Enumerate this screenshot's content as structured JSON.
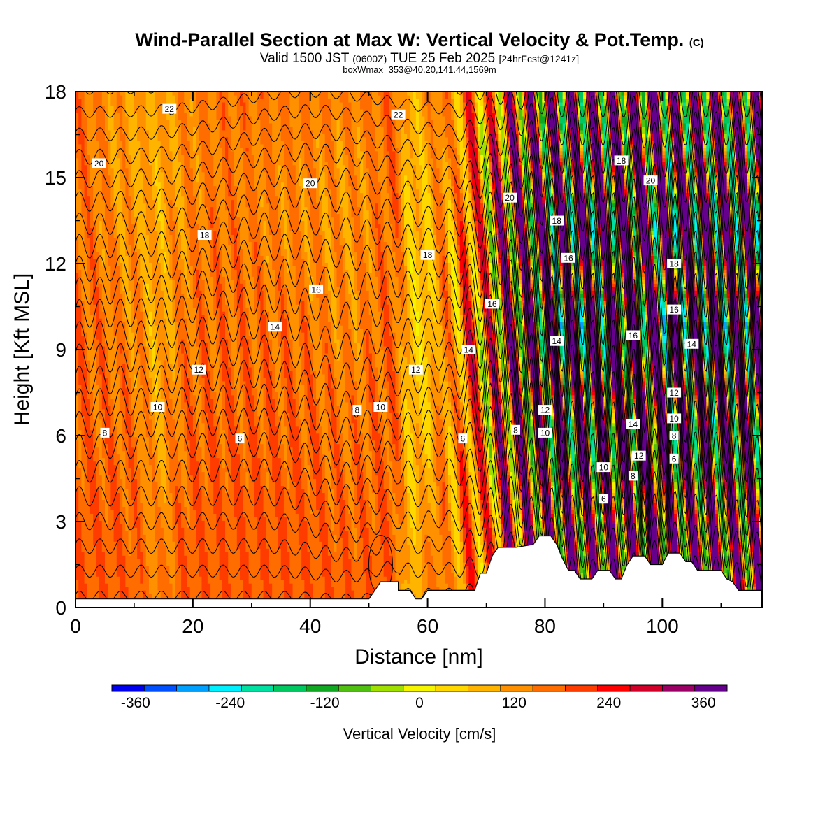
{
  "header": {
    "title": "Wind-Parallel Section at Max W: Vertical Velocity & Pot.Temp.",
    "title_mark": "(C)",
    "valid_prefix": "Valid 1500 JST",
    "valid_utc": "(0600Z)",
    "valid_date": "TUE 25 Feb 2025",
    "forecast": "[24hrFcst@1241z]",
    "boxwmax": "boxWmax=353@40.20,141.44,1569m"
  },
  "chart_data": {
    "type": "heatmap",
    "title": "Wind-Parallel Section at Max W: Vertical Velocity & Pot.Temp.",
    "xlabel": "Distance [nm]",
    "ylabel": "Height [Kft MSL]",
    "xlim": [
      0,
      117
    ],
    "ylim": [
      0,
      18
    ],
    "x_ticks": [
      0,
      20,
      40,
      60,
      80,
      100
    ],
    "y_ticks": [
      0,
      3,
      6,
      9,
      12,
      15,
      18
    ],
    "colorbar": {
      "title": "Vertical Velocity [cm/s]",
      "min": -390,
      "max": 390,
      "step": 30,
      "tick_values": [
        -360,
        -240,
        -120,
        0,
        120,
        240,
        360
      ],
      "tick_labels": [
        "-360",
        "-240",
        "-120",
        "0",
        "120",
        "240",
        "360"
      ],
      "colors": [
        "#0000f0",
        "#0050ff",
        "#00a0ff",
        "#00f0ff",
        "#00e0a0",
        "#00c860",
        "#10a820",
        "#50c010",
        "#a0e000",
        "#f5f500",
        "#ffd800",
        "#ffb400",
        "#ff9000",
        "#ff6c00",
        "#ff3c00",
        "#ff0000",
        "#d20028",
        "#9b0064",
        "#64008c"
      ]
    },
    "contour_labels": [
      "6",
      "8",
      "10",
      "12",
      "14",
      "16",
      "18",
      "20",
      "22"
    ],
    "theta_label_points": [
      {
        "x": 16,
        "y": 17.4,
        "label": "22"
      },
      {
        "x": 55,
        "y": 17.2,
        "label": "22"
      },
      {
        "x": 4,
        "y": 15.5,
        "label": "20"
      },
      {
        "x": 40,
        "y": 14.8,
        "label": "20"
      },
      {
        "x": 74,
        "y": 14.3,
        "label": "20"
      },
      {
        "x": 98,
        "y": 14.9,
        "label": "20"
      },
      {
        "x": 22,
        "y": 13.0,
        "label": "18"
      },
      {
        "x": 60,
        "y": 12.3,
        "label": "18"
      },
      {
        "x": 82,
        "y": 13.5,
        "label": "18"
      },
      {
        "x": 93,
        "y": 15.6,
        "label": "18"
      },
      {
        "x": 102,
        "y": 12.0,
        "label": "18"
      },
      {
        "x": 41,
        "y": 11.1,
        "label": "16"
      },
      {
        "x": 71,
        "y": 10.6,
        "label": "16"
      },
      {
        "x": 84,
        "y": 12.2,
        "label": "16"
      },
      {
        "x": 95,
        "y": 9.5,
        "label": "16"
      },
      {
        "x": 102,
        "y": 10.4,
        "label": "16"
      },
      {
        "x": 34,
        "y": 9.8,
        "label": "14"
      },
      {
        "x": 67,
        "y": 9.0,
        "label": "14"
      },
      {
        "x": 82,
        "y": 9.3,
        "label": "14"
      },
      {
        "x": 95,
        "y": 6.4,
        "label": "14"
      },
      {
        "x": 105,
        "y": 9.2,
        "label": "14"
      },
      {
        "x": 21,
        "y": 8.3,
        "label": "12"
      },
      {
        "x": 58,
        "y": 8.3,
        "label": "12"
      },
      {
        "x": 80,
        "y": 6.9,
        "label": "12"
      },
      {
        "x": 96,
        "y": 5.3,
        "label": "12"
      },
      {
        "x": 102,
        "y": 7.5,
        "label": "12"
      },
      {
        "x": 14,
        "y": 7.0,
        "label": "10"
      },
      {
        "x": 52,
        "y": 7.0,
        "label": "10"
      },
      {
        "x": 80,
        "y": 6.1,
        "label": "10"
      },
      {
        "x": 90,
        "y": 4.9,
        "label": "10"
      },
      {
        "x": 102,
        "y": 6.6,
        "label": "10"
      },
      {
        "x": 5,
        "y": 6.1,
        "label": "8"
      },
      {
        "x": 48,
        "y": 6.9,
        "label": "8"
      },
      {
        "x": 75,
        "y": 6.2,
        "label": "8"
      },
      {
        "x": 95,
        "y": 4.6,
        "label": "8"
      },
      {
        "x": 102,
        "y": 6.0,
        "label": "8"
      },
      {
        "x": 28,
        "y": 5.9,
        "label": "6"
      },
      {
        "x": 66,
        "y": 5.9,
        "label": "6"
      },
      {
        "x": 90,
        "y": 3.8,
        "label": "6"
      },
      {
        "x": 102,
        "y": 5.2,
        "label": "6"
      }
    ],
    "terrain": [
      [
        0,
        0.3
      ],
      [
        10,
        0.3
      ],
      [
        12,
        0.3
      ],
      [
        25,
        0.3
      ],
      [
        40,
        0.3
      ],
      [
        45,
        0.3
      ],
      [
        50,
        0.3
      ],
      [
        51,
        0.6
      ],
      [
        52,
        0.9
      ],
      [
        54,
        0.9
      ],
      [
        55,
        0.9
      ],
      [
        55,
        0.6
      ],
      [
        57,
        0.6
      ],
      [
        58,
        0.3
      ],
      [
        59,
        0.3
      ],
      [
        60,
        0.6
      ],
      [
        68,
        0.6
      ],
      [
        69,
        1.2
      ],
      [
        70,
        1.2
      ],
      [
        71,
        1.8
      ],
      [
        72,
        2.1
      ],
      [
        75,
        2.1
      ],
      [
        78,
        2.2
      ],
      [
        79,
        2.5
      ],
      [
        81,
        2.5
      ],
      [
        82,
        2.2
      ],
      [
        83,
        1.7
      ],
      [
        84,
        1.3
      ],
      [
        85,
        1.3
      ],
      [
        86,
        1.0
      ],
      [
        88,
        1.0
      ],
      [
        89,
        1.3
      ],
      [
        91,
        1.3
      ],
      [
        92,
        1.0
      ],
      [
        93,
        1.0
      ],
      [
        94,
        1.5
      ],
      [
        95,
        1.8
      ],
      [
        97,
        1.8
      ],
      [
        98,
        1.5
      ],
      [
        100,
        1.5
      ],
      [
        101,
        1.9
      ],
      [
        103,
        1.9
      ],
      [
        104,
        1.6
      ],
      [
        105,
        1.6
      ],
      [
        106,
        1.3
      ],
      [
        110,
        1.3
      ],
      [
        111,
        1.0
      ],
      [
        112,
        0.9
      ],
      [
        113,
        0.6
      ],
      [
        117,
        0.6
      ]
    ]
  }
}
